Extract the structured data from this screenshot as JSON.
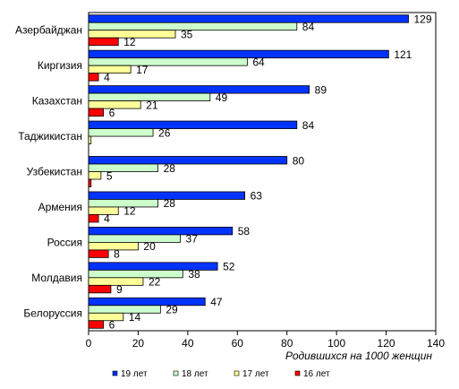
{
  "chart_data": {
    "type": "bar",
    "orientation": "horizontal",
    "categories": [
      "Азербайджан",
      "Киргизия",
      "Казахстан",
      "Таджикистан",
      "Узбекистан",
      "Армения",
      "Россия",
      "Молдавия",
      "Белоруссия"
    ],
    "series": [
      {
        "name": "19 лет",
        "color": "#0033ff",
        "values": [
          129,
          121,
          89,
          84,
          80,
          63,
          58,
          52,
          47
        ]
      },
      {
        "name": "18 лет",
        "color": "#ccffcc",
        "values": [
          84,
          64,
          49,
          26,
          28,
          28,
          37,
          38,
          29
        ]
      },
      {
        "name": "17 лет",
        "color": "#ffff99",
        "values": [
          35,
          17,
          21,
          1,
          5,
          12,
          20,
          22,
          14
        ]
      },
      {
        "name": "16 лет",
        "color": "#ff0000",
        "values": [
          12,
          4,
          6,
          0,
          1,
          4,
          8,
          9,
          6
        ]
      }
    ],
    "value_labels": [
      [
        "129",
        "84",
        "35",
        "12"
      ],
      [
        "121",
        "64",
        "17",
        "4"
      ],
      [
        "89",
        "49",
        "21",
        "6"
      ],
      [
        "84",
        "26",
        "",
        ""
      ],
      [
        "80",
        "28",
        "5",
        ""
      ],
      [
        "63",
        "28",
        "12",
        "4"
      ],
      [
        "58",
        "37",
        "20",
        "8"
      ],
      [
        "52",
        "38",
        "22",
        "9"
      ],
      [
        "47",
        "29",
        "14",
        "6"
      ]
    ],
    "xlabel": "Родившихся на 1000 женщин",
    "ylabel": "",
    "xlim": [
      0,
      140
    ],
    "xticks": [
      0,
      20,
      40,
      60,
      80,
      100,
      120,
      140
    ],
    "grid": false,
    "legend_position": "bottom"
  }
}
